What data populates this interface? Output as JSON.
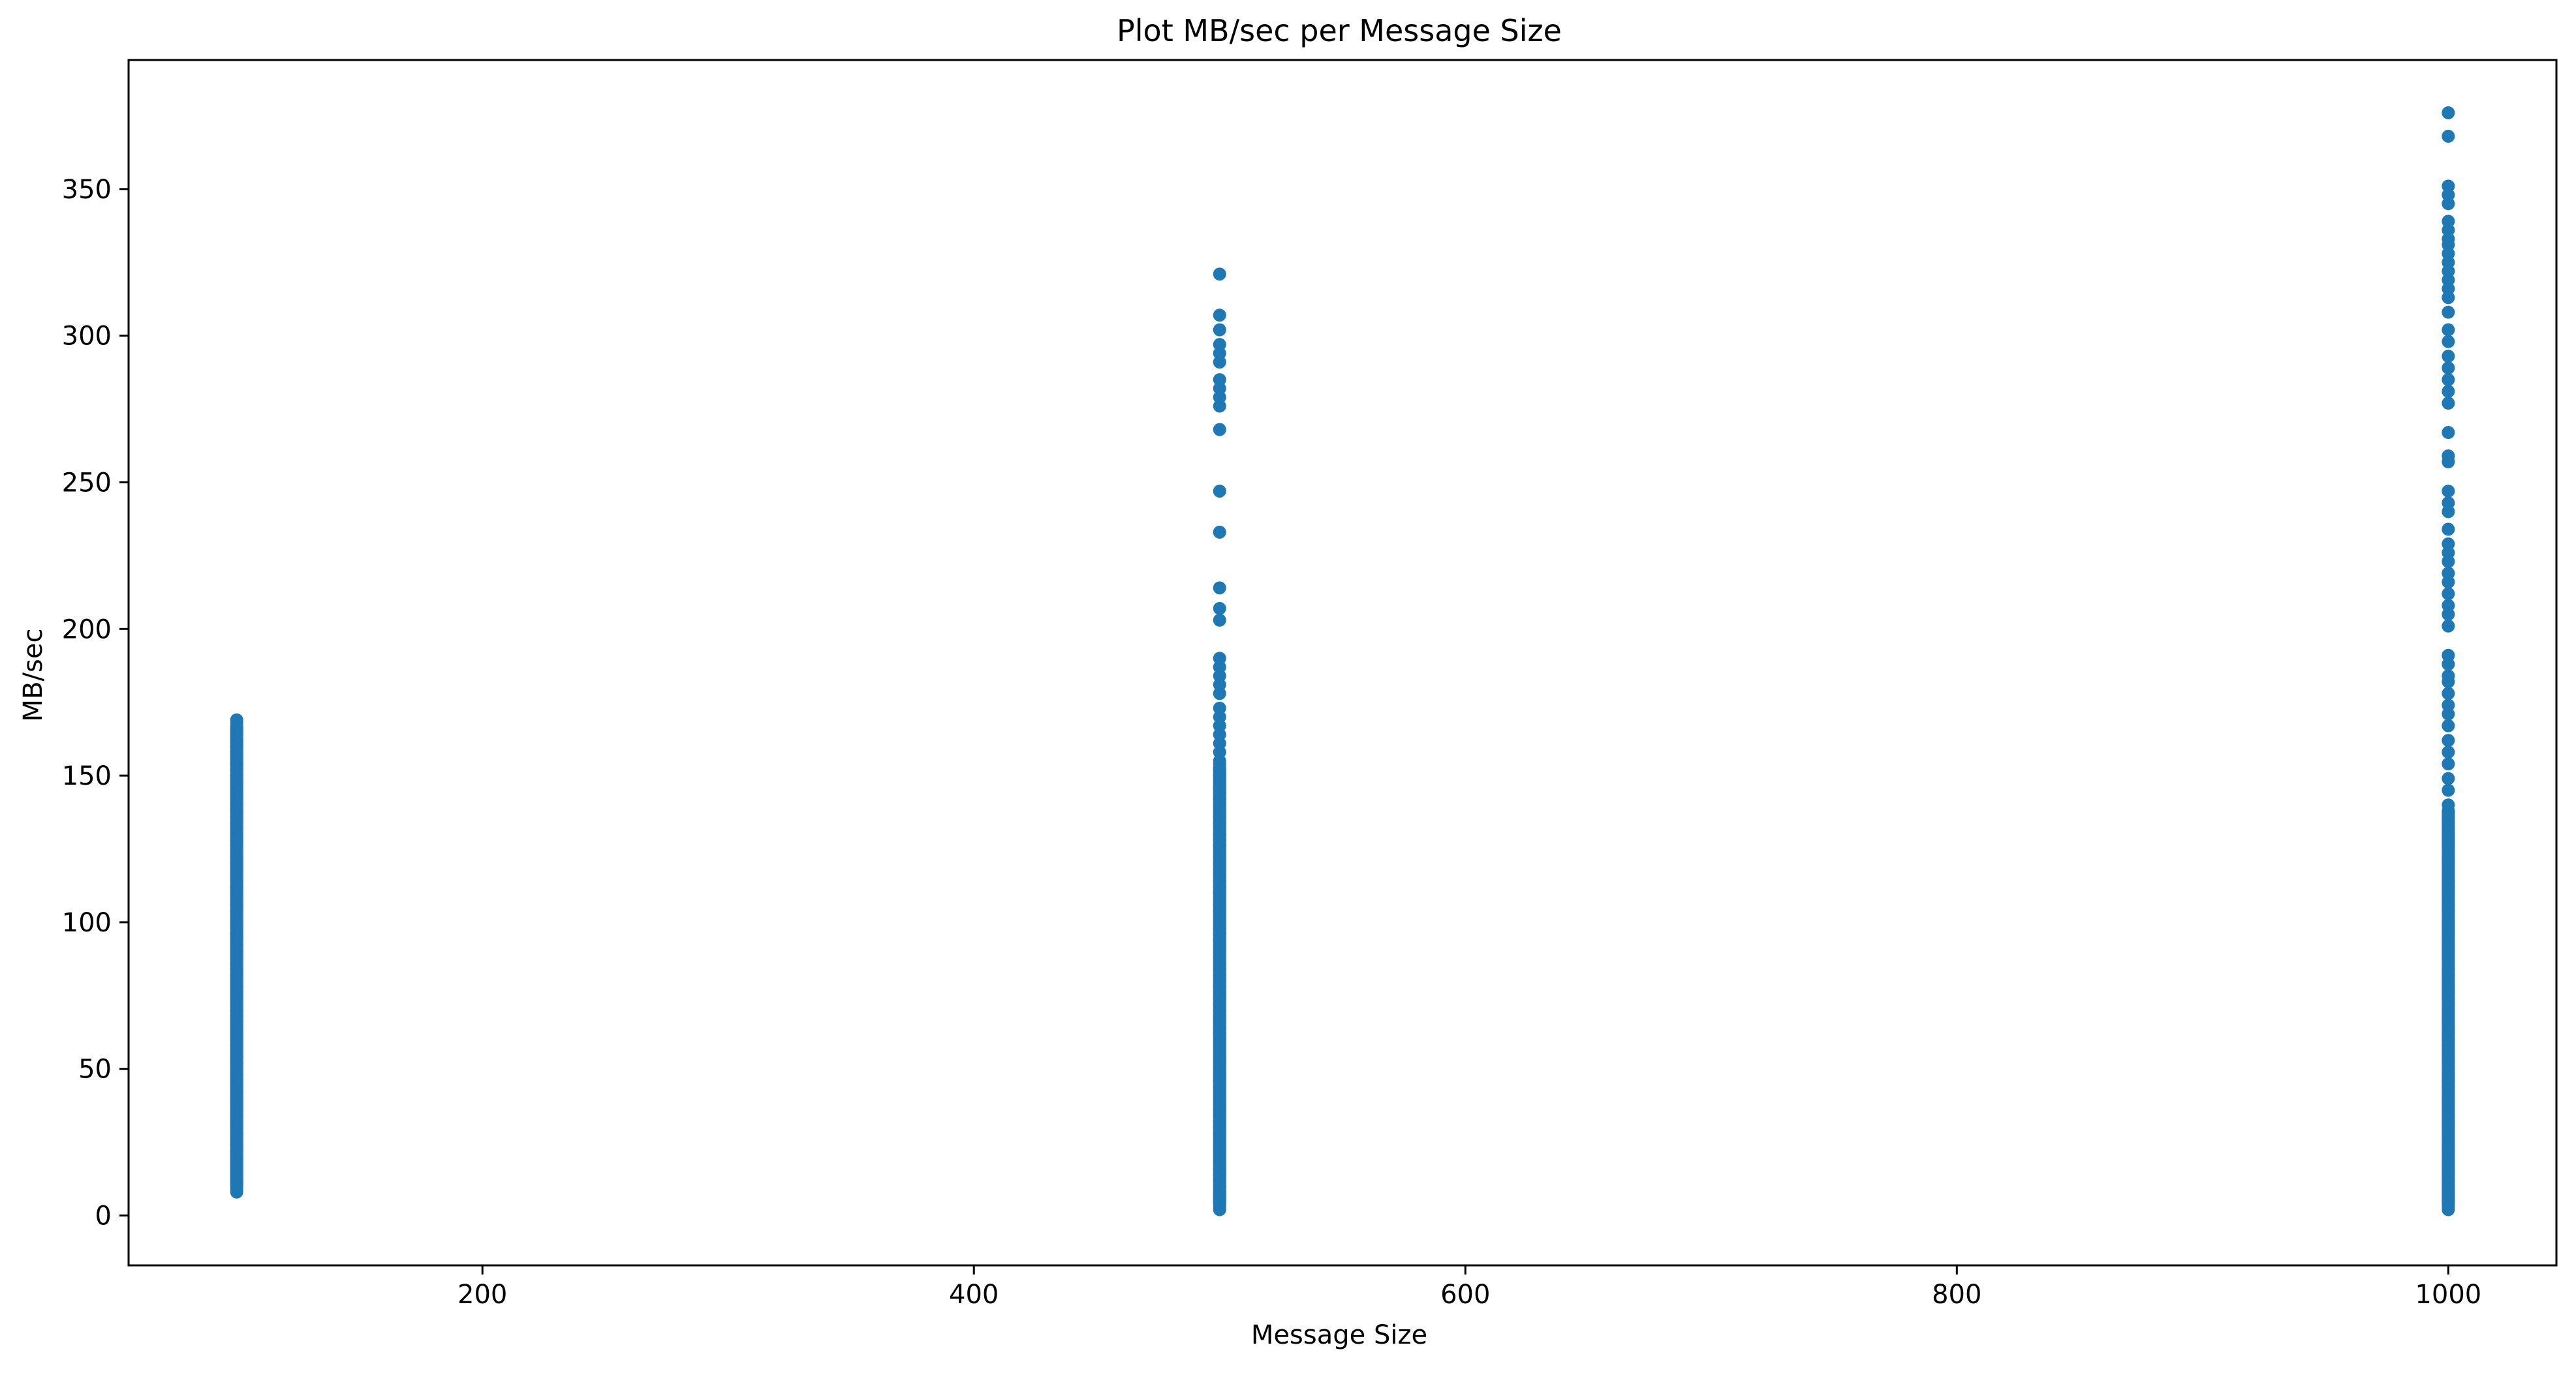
{
  "chart_data": {
    "type": "scatter",
    "title": "Plot MB/sec per Message Size",
    "xlabel": "Message Size",
    "ylabel": "MB/sec",
    "xlim": [
      56,
      1044
    ],
    "ylim": [
      -17,
      394
    ],
    "x_ticks": [
      200,
      400,
      600,
      800,
      1000
    ],
    "y_ticks": [
      0,
      50,
      100,
      150,
      200,
      250,
      300,
      350
    ],
    "grid": false,
    "legend": "none",
    "marker_color": "#1f77b4",
    "series": [
      {
        "x_value": 100,
        "dense_range": [
          8,
          169
        ],
        "points": [
          8,
          9,
          10,
          11,
          12,
          13,
          14,
          15,
          16,
          17,
          18,
          19,
          20,
          22,
          24,
          26,
          28,
          30,
          32,
          34,
          36,
          38,
          40,
          42,
          44,
          46,
          48,
          50,
          52,
          54,
          56,
          58,
          60,
          62,
          64,
          66,
          68,
          70,
          72,
          74,
          76,
          78,
          80,
          82,
          84,
          86,
          88,
          90,
          92,
          94,
          96,
          98,
          100,
          102,
          104,
          106,
          108,
          110,
          112,
          114,
          116,
          118,
          120,
          122,
          124,
          126,
          128,
          130,
          132,
          134,
          136,
          138,
          140,
          142,
          144,
          146,
          148,
          150,
          152,
          154,
          156,
          158,
          160,
          162,
          164,
          166,
          168,
          169
        ]
      },
      {
        "x_value": 500,
        "dense_range": [
          2,
          155
        ],
        "points": [
          2,
          3,
          4,
          5,
          6,
          7,
          8,
          10,
          12,
          14,
          16,
          18,
          20,
          22,
          24,
          26,
          28,
          30,
          32,
          34,
          36,
          38,
          40,
          42,
          44,
          46,
          48,
          50,
          52,
          54,
          56,
          58,
          60,
          62,
          64,
          66,
          68,
          70,
          72,
          74,
          76,
          78,
          80,
          82,
          84,
          86,
          88,
          90,
          92,
          94,
          96,
          98,
          100,
          102,
          104,
          106,
          108,
          110,
          112,
          114,
          116,
          118,
          120,
          122,
          124,
          126,
          128,
          130,
          132,
          134,
          136,
          138,
          140,
          142,
          144,
          146,
          148,
          150,
          152,
          154,
          155,
          158,
          161,
          164,
          167,
          170,
          173,
          178,
          181,
          184,
          187,
          190,
          203,
          207,
          214,
          233,
          247,
          268,
          276,
          279,
          282,
          285,
          291,
          294,
          297,
          302,
          307,
          321
        ]
      },
      {
        "x_value": 1000,
        "dense_range": [
          2,
          140
        ],
        "points": [
          2,
          3,
          4,
          5,
          6,
          7,
          8,
          10,
          12,
          14,
          16,
          18,
          20,
          22,
          24,
          26,
          28,
          30,
          32,
          34,
          36,
          38,
          40,
          42,
          44,
          46,
          48,
          50,
          52,
          54,
          56,
          58,
          60,
          62,
          64,
          66,
          68,
          70,
          72,
          74,
          76,
          78,
          80,
          82,
          84,
          86,
          88,
          90,
          92,
          94,
          96,
          98,
          100,
          102,
          104,
          106,
          108,
          110,
          112,
          114,
          116,
          118,
          120,
          122,
          124,
          126,
          128,
          130,
          132,
          134,
          136,
          138,
          140,
          145,
          149,
          154,
          158,
          162,
          167,
          171,
          174,
          178,
          182,
          184,
          188,
          191,
          201,
          205,
          208,
          212,
          216,
          219,
          223,
          226,
          229,
          234,
          240,
          243,
          247,
          257,
          259,
          267,
          277,
          281,
          285,
          289,
          293,
          298,
          302,
          308,
          313,
          316,
          319,
          322,
          325,
          328,
          331,
          333,
          336,
          339,
          345,
          348,
          351,
          368,
          376
        ]
      }
    ]
  }
}
